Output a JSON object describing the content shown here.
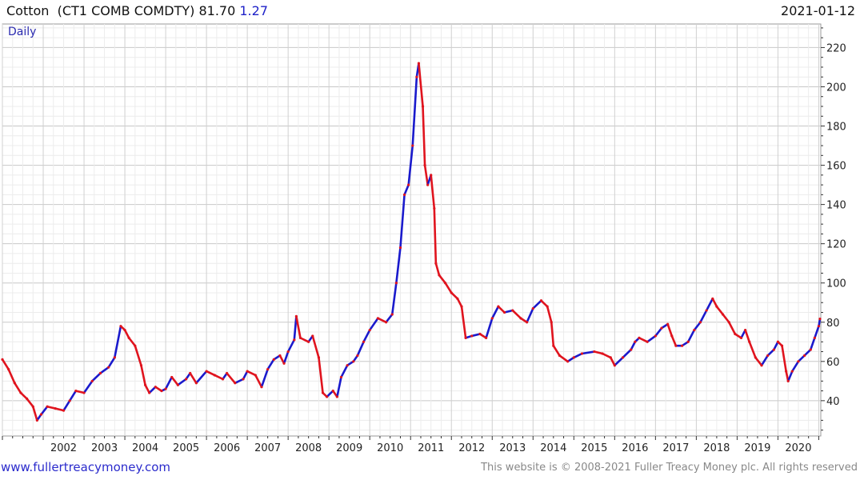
{
  "header": {
    "name": "Cotton",
    "ticker": "(CT1 COMB COMDTY)",
    "last": "81.70",
    "change": "1.27",
    "date": "2021-01-12"
  },
  "frequency_label": "Daily",
  "footer": {
    "website": "www.fullertreacymoney.com",
    "copyright": "This website is © 2008-2021 Fuller Treacy Money plc. All rights reserved"
  },
  "colors": {
    "up": "#1a1acc",
    "down": "#e0141e",
    "grid": "#d4d4d4",
    "axis": "#333333"
  },
  "chart_data": {
    "type": "line",
    "title": "Cotton  (CT1 COMB COMDTY)",
    "x_unit": "year",
    "xlim": [
      2001.0,
      2021.05
    ],
    "ylim": [
      22,
      232
    ],
    "y_ticks": [
      40,
      60,
      80,
      100,
      120,
      140,
      160,
      180,
      200,
      220
    ],
    "x_ticks": [
      2002,
      2003,
      2004,
      2005,
      2006,
      2007,
      2008,
      2009,
      2010,
      2011,
      2012,
      2013,
      2014,
      2015,
      2016,
      2017,
      2018,
      2019,
      2020
    ],
    "grid": true,
    "series": [
      {
        "values": [
          [
            2001.0,
            61
          ],
          [
            2001.15,
            56
          ],
          [
            2001.3,
            49
          ],
          [
            2001.45,
            44
          ],
          [
            2001.6,
            41
          ],
          [
            2001.75,
            37
          ],
          [
            2001.85,
            30
          ],
          [
            2001.95,
            33
          ],
          [
            2002.1,
            37
          ],
          [
            2002.3,
            36
          ],
          [
            2002.5,
            35
          ],
          [
            2002.65,
            40
          ],
          [
            2002.8,
            45
          ],
          [
            2003.0,
            44
          ],
          [
            2003.2,
            50
          ],
          [
            2003.4,
            54
          ],
          [
            2003.6,
            57
          ],
          [
            2003.75,
            62
          ],
          [
            2003.9,
            78
          ],
          [
            2004.0,
            76
          ],
          [
            2004.1,
            72
          ],
          [
            2004.25,
            68
          ],
          [
            2004.4,
            58
          ],
          [
            2004.5,
            48
          ],
          [
            2004.6,
            44
          ],
          [
            2004.75,
            47
          ],
          [
            2004.9,
            45
          ],
          [
            2005.0,
            46
          ],
          [
            2005.15,
            52
          ],
          [
            2005.3,
            48
          ],
          [
            2005.5,
            51
          ],
          [
            2005.6,
            54
          ],
          [
            2005.75,
            49
          ],
          [
            2006.0,
            55
          ],
          [
            2006.2,
            53
          ],
          [
            2006.4,
            51
          ],
          [
            2006.5,
            54
          ],
          [
            2006.7,
            49
          ],
          [
            2006.9,
            51
          ],
          [
            2007.0,
            55
          ],
          [
            2007.2,
            53
          ],
          [
            2007.35,
            47
          ],
          [
            2007.5,
            56
          ],
          [
            2007.65,
            61
          ],
          [
            2007.8,
            63
          ],
          [
            2007.9,
            59
          ],
          [
            2008.0,
            65
          ],
          [
            2008.15,
            71
          ],
          [
            2008.2,
            83
          ],
          [
            2008.3,
            72
          ],
          [
            2008.5,
            70
          ],
          [
            2008.6,
            73
          ],
          [
            2008.75,
            62
          ],
          [
            2008.85,
            44
          ],
          [
            2008.95,
            42
          ],
          [
            2009.1,
            45
          ],
          [
            2009.2,
            42
          ],
          [
            2009.3,
            52
          ],
          [
            2009.45,
            58
          ],
          [
            2009.6,
            60
          ],
          [
            2009.7,
            63
          ],
          [
            2009.85,
            70
          ],
          [
            2010.0,
            76
          ],
          [
            2010.2,
            82
          ],
          [
            2010.4,
            80
          ],
          [
            2010.55,
            84
          ],
          [
            2010.65,
            100
          ],
          [
            2010.75,
            118
          ],
          [
            2010.85,
            145
          ],
          [
            2010.95,
            150
          ],
          [
            2011.05,
            170
          ],
          [
            2011.15,
            205
          ],
          [
            2011.2,
            212
          ],
          [
            2011.3,
            190
          ],
          [
            2011.35,
            160
          ],
          [
            2011.42,
            150
          ],
          [
            2011.5,
            155
          ],
          [
            2011.58,
            138
          ],
          [
            2011.62,
            110
          ],
          [
            2011.7,
            104
          ],
          [
            2011.85,
            100
          ],
          [
            2012.0,
            95
          ],
          [
            2012.15,
            92
          ],
          [
            2012.25,
            88
          ],
          [
            2012.35,
            72
          ],
          [
            2012.5,
            73
          ],
          [
            2012.7,
            74
          ],
          [
            2012.85,
            72
          ],
          [
            2013.0,
            82
          ],
          [
            2013.15,
            88
          ],
          [
            2013.3,
            85
          ],
          [
            2013.5,
            86
          ],
          [
            2013.7,
            82
          ],
          [
            2013.85,
            80
          ],
          [
            2014.0,
            87
          ],
          [
            2014.2,
            91
          ],
          [
            2014.35,
            88
          ],
          [
            2014.45,
            80
          ],
          [
            2014.5,
            68
          ],
          [
            2014.65,
            63
          ],
          [
            2014.85,
            60
          ],
          [
            2015.0,
            62
          ],
          [
            2015.2,
            64
          ],
          [
            2015.5,
            65
          ],
          [
            2015.7,
            64
          ],
          [
            2015.9,
            62
          ],
          [
            2016.0,
            58
          ],
          [
            2016.2,
            62
          ],
          [
            2016.4,
            66
          ],
          [
            2016.5,
            70
          ],
          [
            2016.6,
            72
          ],
          [
            2016.8,
            70
          ],
          [
            2017.0,
            73
          ],
          [
            2017.15,
            77
          ],
          [
            2017.3,
            79
          ],
          [
            2017.4,
            73
          ],
          [
            2017.5,
            68
          ],
          [
            2017.65,
            68
          ],
          [
            2017.8,
            70
          ],
          [
            2017.95,
            76
          ],
          [
            2018.1,
            80
          ],
          [
            2018.25,
            86
          ],
          [
            2018.4,
            92
          ],
          [
            2018.5,
            88
          ],
          [
            2018.65,
            84
          ],
          [
            2018.8,
            80
          ],
          [
            2018.95,
            74
          ],
          [
            2019.1,
            72
          ],
          [
            2019.2,
            76
          ],
          [
            2019.3,
            70
          ],
          [
            2019.45,
            62
          ],
          [
            2019.6,
            58
          ],
          [
            2019.75,
            63
          ],
          [
            2019.9,
            66
          ],
          [
            2020.0,
            70
          ],
          [
            2020.1,
            68
          ],
          [
            2020.2,
            55
          ],
          [
            2020.25,
            50
          ],
          [
            2020.35,
            55
          ],
          [
            2020.5,
            60
          ],
          [
            2020.65,
            63
          ],
          [
            2020.8,
            66
          ],
          [
            2020.9,
            72
          ],
          [
            2021.0,
            78
          ],
          [
            2021.03,
            81.7
          ]
        ]
      }
    ]
  }
}
